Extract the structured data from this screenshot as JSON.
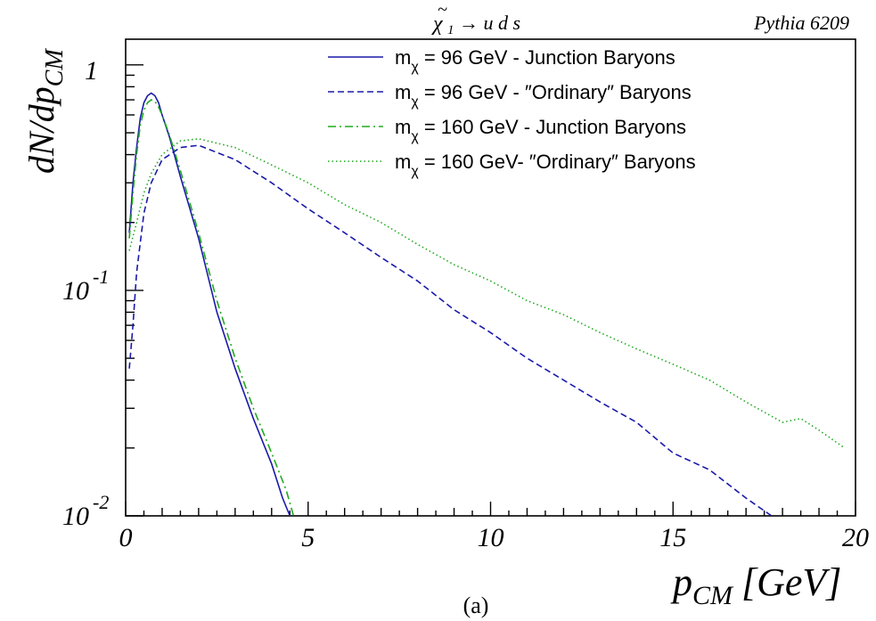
{
  "chart_data": {
    "type": "line",
    "title": "χ̃₁ → u d s",
    "title_parts": {
      "chi": "χ",
      "tilde": "~",
      "sub": "1",
      "rest": "→ u d s"
    },
    "generator_label": "Pythia 6209",
    "xlabel": "p_CM [GeV]",
    "xlabel_parts": {
      "p": "p",
      "sub": "CM",
      "unit": "[GeV]"
    },
    "ylabel": "dN/dp_CM",
    "ylabel_parts": {
      "main": "dN/dp",
      "sub": "CM"
    },
    "caption": "(a)",
    "xlim": [
      0,
      20
    ],
    "ylim": [
      0.01,
      1.3
    ],
    "yscale": "log",
    "x_ticks": [
      {
        "value": 0,
        "label": "0"
      },
      {
        "value": 5,
        "label": "5"
      },
      {
        "value": 10,
        "label": "10"
      },
      {
        "value": 15,
        "label": "15"
      },
      {
        "value": 20,
        "label": "20"
      }
    ],
    "y_ticks": [
      {
        "value": 1,
        "base": "1",
        "exp": ""
      },
      {
        "value": 0.1,
        "base": "10",
        "exp": "-1"
      },
      {
        "value": 0.01,
        "base": "10",
        "exp": "-2"
      }
    ],
    "grid": false,
    "legend_position": "top-right",
    "series": [
      {
        "name": "m_χ = 96 GeV - Junction Baryons",
        "legend": {
          "m": "m",
          "sub": "χ",
          "rest": " = 96 GeV - Junction Baryons"
        },
        "color": "#1a1aaa",
        "dash": "solid",
        "x": [
          0.1,
          0.2,
          0.3,
          0.4,
          0.5,
          0.6,
          0.7,
          0.8,
          0.9,
          1.0,
          1.2,
          1.5,
          2.0,
          2.5,
          3.0,
          3.5,
          4.0,
          4.3,
          4.5
        ],
        "y": [
          0.18,
          0.3,
          0.43,
          0.58,
          0.68,
          0.73,
          0.75,
          0.73,
          0.68,
          0.6,
          0.48,
          0.32,
          0.17,
          0.08,
          0.045,
          0.027,
          0.017,
          0.012,
          0.01
        ]
      },
      {
        "name": "m_χ = 96 GeV - \"Ordinary\" Baryons",
        "legend": {
          "m": "m",
          "sub": "χ",
          "rest": " = 96 GeV - ″Ordinary″ Baryons"
        },
        "color": "#1a1aaa",
        "dash": "dashed",
        "x": [
          0.1,
          0.2,
          0.3,
          0.5,
          0.7,
          1.0,
          1.5,
          2.0,
          3.0,
          4.0,
          5.0,
          6.0,
          7.0,
          8.0,
          9.0,
          10.0,
          11.0,
          12.0,
          13.0,
          14.0,
          15.0,
          16.0,
          17.0,
          17.7
        ],
        "y": [
          0.045,
          0.07,
          0.12,
          0.22,
          0.3,
          0.38,
          0.43,
          0.44,
          0.38,
          0.3,
          0.23,
          0.18,
          0.14,
          0.11,
          0.082,
          0.065,
          0.05,
          0.04,
          0.032,
          0.026,
          0.019,
          0.016,
          0.012,
          0.01
        ]
      },
      {
        "name": "m_χ = 160 GeV - Junction Baryons",
        "legend": {
          "m": "m",
          "sub": "χ",
          "rest": " = 160 GeV - Junction Baryons"
        },
        "color": "#22aa22",
        "dash": "dashdot",
        "x": [
          0.1,
          0.2,
          0.3,
          0.4,
          0.5,
          0.6,
          0.7,
          0.8,
          0.9,
          1.0,
          1.2,
          1.5,
          2.0,
          2.5,
          3.0,
          3.5,
          4.0,
          4.4,
          4.6
        ],
        "y": [
          0.17,
          0.27,
          0.4,
          0.54,
          0.63,
          0.68,
          0.7,
          0.69,
          0.65,
          0.6,
          0.49,
          0.34,
          0.18,
          0.09,
          0.05,
          0.03,
          0.019,
          0.013,
          0.01
        ]
      },
      {
        "name": "m_χ = 160 GeV- \"Ordinary\" Baryons",
        "legend": {
          "m": "m",
          "sub": "χ",
          "rest": " = 160 GeV- ″Ordinary″ Baryons"
        },
        "color": "#22aa22",
        "dash": "dotted",
        "x": [
          0.1,
          0.3,
          0.5,
          0.7,
          1.0,
          1.5,
          2.0,
          3.0,
          4.0,
          5.0,
          6.0,
          7.0,
          8.0,
          9.0,
          10.0,
          11.0,
          12.0,
          13.0,
          14.0,
          15.0,
          16.0,
          17.0,
          18.0,
          18.5,
          19.0,
          19.7
        ],
        "y": [
          0.15,
          0.2,
          0.27,
          0.33,
          0.4,
          0.46,
          0.47,
          0.43,
          0.36,
          0.3,
          0.24,
          0.2,
          0.16,
          0.13,
          0.11,
          0.09,
          0.078,
          0.065,
          0.055,
          0.047,
          0.04,
          0.032,
          0.026,
          0.027,
          0.024,
          0.02
        ]
      }
    ]
  }
}
